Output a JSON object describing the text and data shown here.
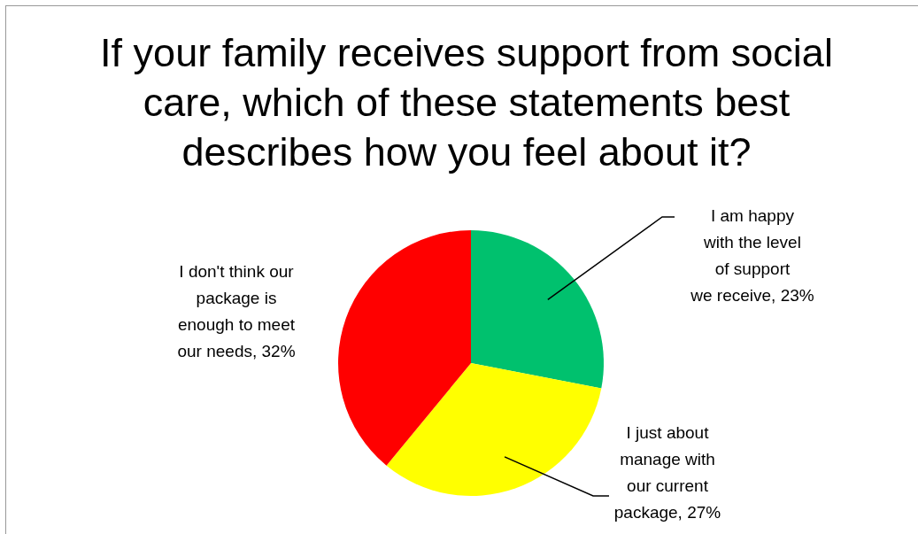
{
  "chart_data": {
    "type": "pie",
    "title": "If your family receives support from social care, which of these statements best describes how you feel about it?",
    "categories": [
      "I am happy with the level of support we receive",
      "I just about manage with our current package",
      "I don't think our package is enough to meet our needs"
    ],
    "values": [
      23,
      27,
      32
    ],
    "value_labels": [
      "23%",
      "27%",
      "32%"
    ],
    "colors": [
      "#00c16e",
      "#ffff00",
      "#ff0000"
    ],
    "legend": false
  }
}
